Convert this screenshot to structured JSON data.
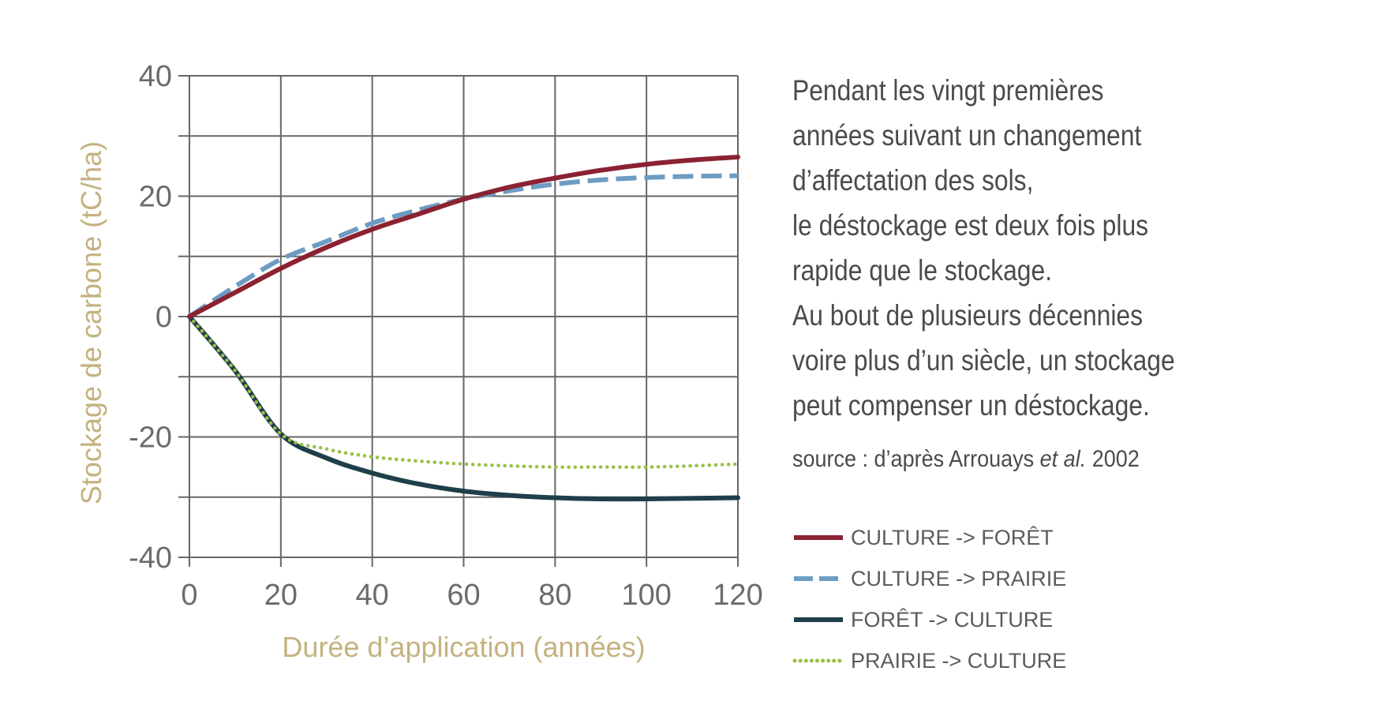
{
  "description": {
    "lines": [
      "Pendant les vingt premières",
      "années suivant un changement",
      "d’affectation des sols,",
      "le déstockage est deux fois plus",
      "rapide que le stockage.",
      "Au bout de plusieurs décennies",
      "voire plus d’un siècle, un stockage",
      "peut compenser un déstockage."
    ],
    "source_prefix": "source : d’après Arrouays ",
    "source_italic": "et al.",
    "source_suffix": " 2002"
  },
  "colors": {
    "culture_foret": "#8b2232",
    "culture_prairie": "#6d9cc3",
    "foret_culture": "#1f3f4a",
    "prairie_culture": "#9bbf47",
    "axis_title": "#c4b27f",
    "grid": "#666666"
  },
  "chart_data": {
    "type": "line",
    "title": "",
    "xlabel": "Durée d’application (années)",
    "ylabel": "Stockage de carbone (tC/ha)",
    "xlim": [
      0,
      120
    ],
    "ylim": [
      -40,
      40
    ],
    "x_ticks": [
      0,
      20,
      40,
      60,
      80,
      100,
      120
    ],
    "y_ticks": [
      -40,
      -20,
      0,
      20,
      40
    ],
    "grid": true,
    "legend_position": "right",
    "series": [
      {
        "name": "CULTURE -> FORÊT",
        "style": "solid",
        "color": "#8b2232",
        "x": [
          0,
          10,
          20,
          30,
          40,
          50,
          60,
          70,
          80,
          90,
          100,
          110,
          120
        ],
        "y": [
          0,
          4,
          8,
          11.5,
          14.5,
          17,
          19.5,
          21.5,
          23,
          24.3,
          25.3,
          26,
          26.5
        ]
      },
      {
        "name": "CULTURE -> PRAIRIE",
        "style": "dashed",
        "color": "#6d9cc3",
        "x": [
          0,
          10,
          20,
          30,
          40,
          50,
          60,
          70,
          80,
          90,
          100,
          110,
          120
        ],
        "y": [
          0,
          5,
          9.5,
          12.5,
          15.5,
          17.7,
          19.5,
          20.9,
          22,
          22.7,
          23.1,
          23.3,
          23.4
        ]
      },
      {
        "name": "FORÊT -> CULTURE",
        "style": "solid",
        "color": "#1f3f4a",
        "x": [
          0,
          10,
          20,
          30,
          40,
          50,
          60,
          70,
          80,
          90,
          100,
          110,
          120
        ],
        "y": [
          0,
          -9,
          -19.5,
          -23.5,
          -26,
          -27.8,
          -29,
          -29.7,
          -30.1,
          -30.3,
          -30.3,
          -30.2,
          -30.1
        ]
      },
      {
        "name": "PRAIRIE -> CULTURE",
        "style": "dotted",
        "color": "#9bbf47",
        "x": [
          0,
          10,
          20,
          30,
          40,
          50,
          60,
          70,
          80,
          90,
          100,
          110,
          120
        ],
        "y": [
          0,
          -9,
          -19.5,
          -22,
          -23.3,
          -24,
          -24.5,
          -24.8,
          -25,
          -25,
          -25,
          -24.8,
          -24.5
        ]
      }
    ]
  }
}
